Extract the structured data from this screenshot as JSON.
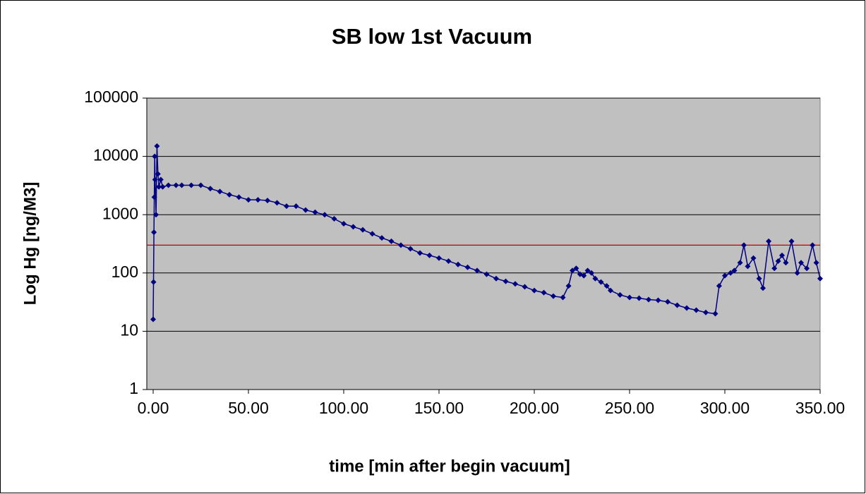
{
  "chart_data": {
    "type": "scatter",
    "title": "SB low 1st Vacuum",
    "x_label": "time [min after begin vacuum]",
    "y_label": "Log Hg [ng/M3]",
    "log_y": true,
    "grid": true,
    "xlim": [
      0,
      350
    ],
    "xticks": [
      {
        "value": 0,
        "label": "0.00"
      },
      {
        "value": 50,
        "label": "50.00"
      },
      {
        "value": 100,
        "label": "100.00"
      },
      {
        "value": 150,
        "label": "150.00"
      },
      {
        "value": 200,
        "label": "200.00"
      },
      {
        "value": 250,
        "label": "250.00"
      },
      {
        "value": 300,
        "label": "300.00"
      },
      {
        "value": 350,
        "label": "350.00"
      }
    ],
    "ylim": [
      1,
      100000
    ],
    "yticks": [
      1,
      10,
      100,
      1000,
      10000,
      100000
    ],
    "reference_line": {
      "value": 300,
      "color": "#c00000"
    },
    "series": [
      {
        "color": "#000080",
        "x": [
          0,
          0.2,
          0.4,
          0.6,
          0.8,
          1,
          1.5,
          2,
          2.5,
          3,
          4,
          5,
          8,
          12,
          15,
          20,
          25,
          30,
          35,
          40,
          45,
          50,
          55,
          60,
          65,
          70,
          75,
          80,
          85,
          90,
          95,
          100,
          105,
          110,
          115,
          120,
          125,
          130,
          135,
          140,
          145,
          150,
          155,
          160,
          165,
          170,
          175,
          180,
          185,
          190,
          195,
          200,
          205,
          210,
          215,
          218,
          220,
          222,
          224,
          226,
          228,
          230,
          232,
          235,
          238,
          240,
          245,
          250,
          255,
          260,
          265,
          270,
          275,
          280,
          285,
          290,
          295,
          297,
          300,
          303,
          305,
          308,
          310,
          312,
          315,
          318,
          320,
          323,
          326,
          328,
          330,
          332,
          335,
          338,
          340,
          343,
          346,
          348,
          350
        ],
        "values": [
          16,
          70,
          500,
          2000,
          10000,
          4000,
          1000,
          15000,
          5000,
          3000,
          4000,
          3000,
          3200,
          3200,
          3200,
          3200,
          3200,
          2800,
          2500,
          2200,
          2000,
          1800,
          1800,
          1750,
          1600,
          1400,
          1400,
          1200,
          1100,
          1000,
          850,
          700,
          620,
          550,
          470,
          400,
          350,
          300,
          260,
          220,
          200,
          180,
          160,
          140,
          125,
          110,
          95,
          80,
          72,
          65,
          58,
          50,
          46,
          40,
          38,
          60,
          110,
          120,
          95,
          90,
          110,
          100,
          80,
          70,
          60,
          50,
          42,
          38,
          37,
          35,
          34,
          32,
          28,
          25,
          23,
          21,
          20,
          60,
          90,
          100,
          110,
          150,
          300,
          130,
          180,
          80,
          55,
          350,
          120,
          160,
          200,
          150,
          350,
          100,
          150,
          120,
          300,
          150,
          80
        ]
      }
    ]
  }
}
